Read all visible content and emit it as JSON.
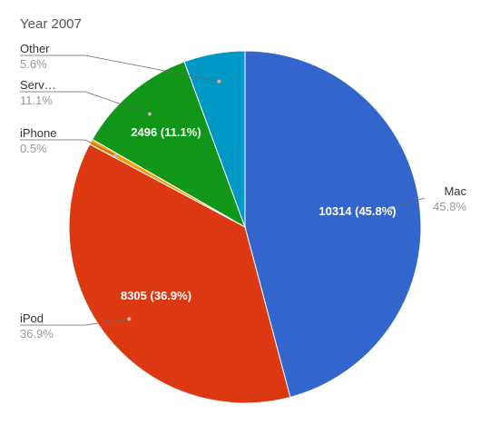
{
  "chart_data": {
    "type": "pie",
    "title": "Year 2007",
    "start_angle_deg": 0,
    "slices": [
      {
        "name": "Mac",
        "short_label": "Mac",
        "value": 10314,
        "percent_label": "45.8%",
        "inside_label": "10314 (45.8%)",
        "color": "#3366cc"
      },
      {
        "name": "iPod",
        "short_label": "iPod",
        "value": 8305,
        "percent_label": "36.9%",
        "inside_label": "8305 (36.9%)",
        "color": "#dc3912"
      },
      {
        "name": "iPhone",
        "short_label": "iPhone",
        "value": 113,
        "percent_label": "0.5%",
        "inside_label": "",
        "color": "#ff9900"
      },
      {
        "name": "Services",
        "short_label": "Serv…",
        "value": 2496,
        "percent_label": "11.1%",
        "inside_label": "2496 (11.1%)",
        "color": "#109618"
      },
      {
        "name": "Other",
        "short_label": "Other",
        "value": 1261,
        "percent_label": "5.6%",
        "inside_label": "",
        "color": "#0099c6"
      }
    ]
  }
}
